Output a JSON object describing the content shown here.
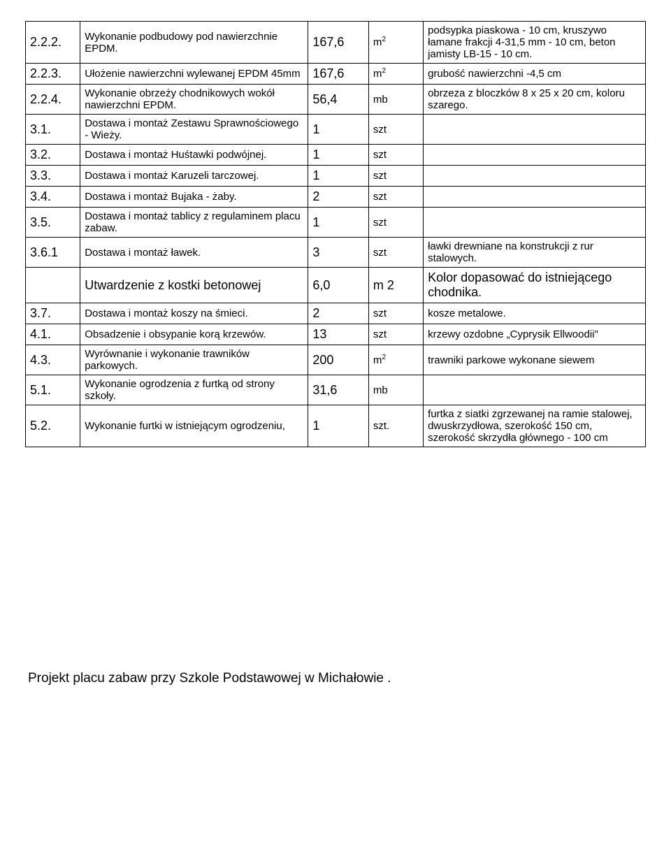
{
  "rows": [
    {
      "num": "2.2.2.",
      "desc": "Wykonanie podbudowy pod nawierzchnie EPDM.",
      "qty": "167,6",
      "unit_html": "m<sup>2</sup>",
      "note": "podsypka piaskowa - 10 cm, kruszywo łamane frakcji 4-31,5 mm - 10 cm, beton jamisty LB-15 - 10 cm."
    },
    {
      "num": "2.2.3.",
      "desc": "Ułożenie nawierzchni wylewanej EPDM 45mm",
      "qty": "167,6",
      "unit_html": "m<sup>2</sup>",
      "note": "grubość nawierzchni -4,5 cm"
    },
    {
      "num": "2.2.4.",
      "desc": "Wykonanie obrzeży chodnikowych wokół nawierzchni EPDM.",
      "qty": "56,4",
      "unit_html": "mb",
      "note": "obrzeza z bloczków 8 x 25 x 20 cm, koloru szarego."
    },
    {
      "num": "3.1.",
      "desc": "Dostawa i montaż Zestawu Sprawnościowego - Wieży.",
      "qty": "1",
      "unit_html": "szt",
      "note": ""
    },
    {
      "num": "3.2.",
      "desc": "Dostawa i montaż Huśtawki podwójnej.",
      "qty": "1",
      "unit_html": "szt",
      "note": ""
    },
    {
      "num": "3.3.",
      "desc": "Dostawa i montaż Karuzeli tarczowej.",
      "qty": "1",
      "unit_html": "szt",
      "note": ""
    },
    {
      "num": "3.4.",
      "desc": "Dostawa i montaż Bujaka - żaby.",
      "qty": "2",
      "unit_html": "szt",
      "note": ""
    },
    {
      "num": "3.5.",
      "desc": "Dostawa i montaż tablicy z regulaminem placu zabaw.",
      "qty": "1",
      "unit_html": "szt",
      "note": ""
    },
    {
      "num": "3.6.1",
      "desc": "Dostawa i montaż ławek.",
      "qty": "3",
      "unit_html": "szt",
      "note": "ławki drewniane na konstrukcji z rur stalowych."
    },
    {
      "num": "",
      "desc": "Utwardzenie z kostki betonowej",
      "qty": "6,0",
      "unit_html": "m 2",
      "note": "Kolor dopasować do istniejącego chodnika.",
      "big_note": true
    },
    {
      "num": "3.7.",
      "desc": "Dostawa i montaż koszy na śmieci.",
      "qty": "2",
      "unit_html": "szt",
      "note": "kosze metalowe."
    },
    {
      "num": "4.1.",
      "desc": "Obsadzenie i obsypanie korą krzewów.",
      "qty": "13",
      "unit_html": "szt",
      "note": "krzewy ozdobne „Cyprysik Ellwoodii\""
    },
    {
      "num": "4.3.",
      "desc": "Wyrównanie i wykonanie trawników parkowych.",
      "qty": "200",
      "unit_html": "m<sup>2</sup>",
      "note": "trawniki parkowe wykonane siewem"
    },
    {
      "num": "5.1.",
      "desc": "Wykonanie ogrodzenia z furtką od strony szkoły.",
      "qty": "31,6",
      "unit_html": "mb",
      "note": ""
    },
    {
      "num": "5.2.",
      "desc": "Wykonanie furtki w istniejącym ogrodzeniu,",
      "qty": "1",
      "unit_html": "szt.",
      "note": "furtka z siatki zgrzewanej na ramie stalowej, dwuskrzydłowa, szerokość 150 cm, szerokość skrzydła głównego - 100 cm"
    }
  ],
  "footer": "Projekt placu zabaw przy Szkole Podstawowej w Michałowie ."
}
